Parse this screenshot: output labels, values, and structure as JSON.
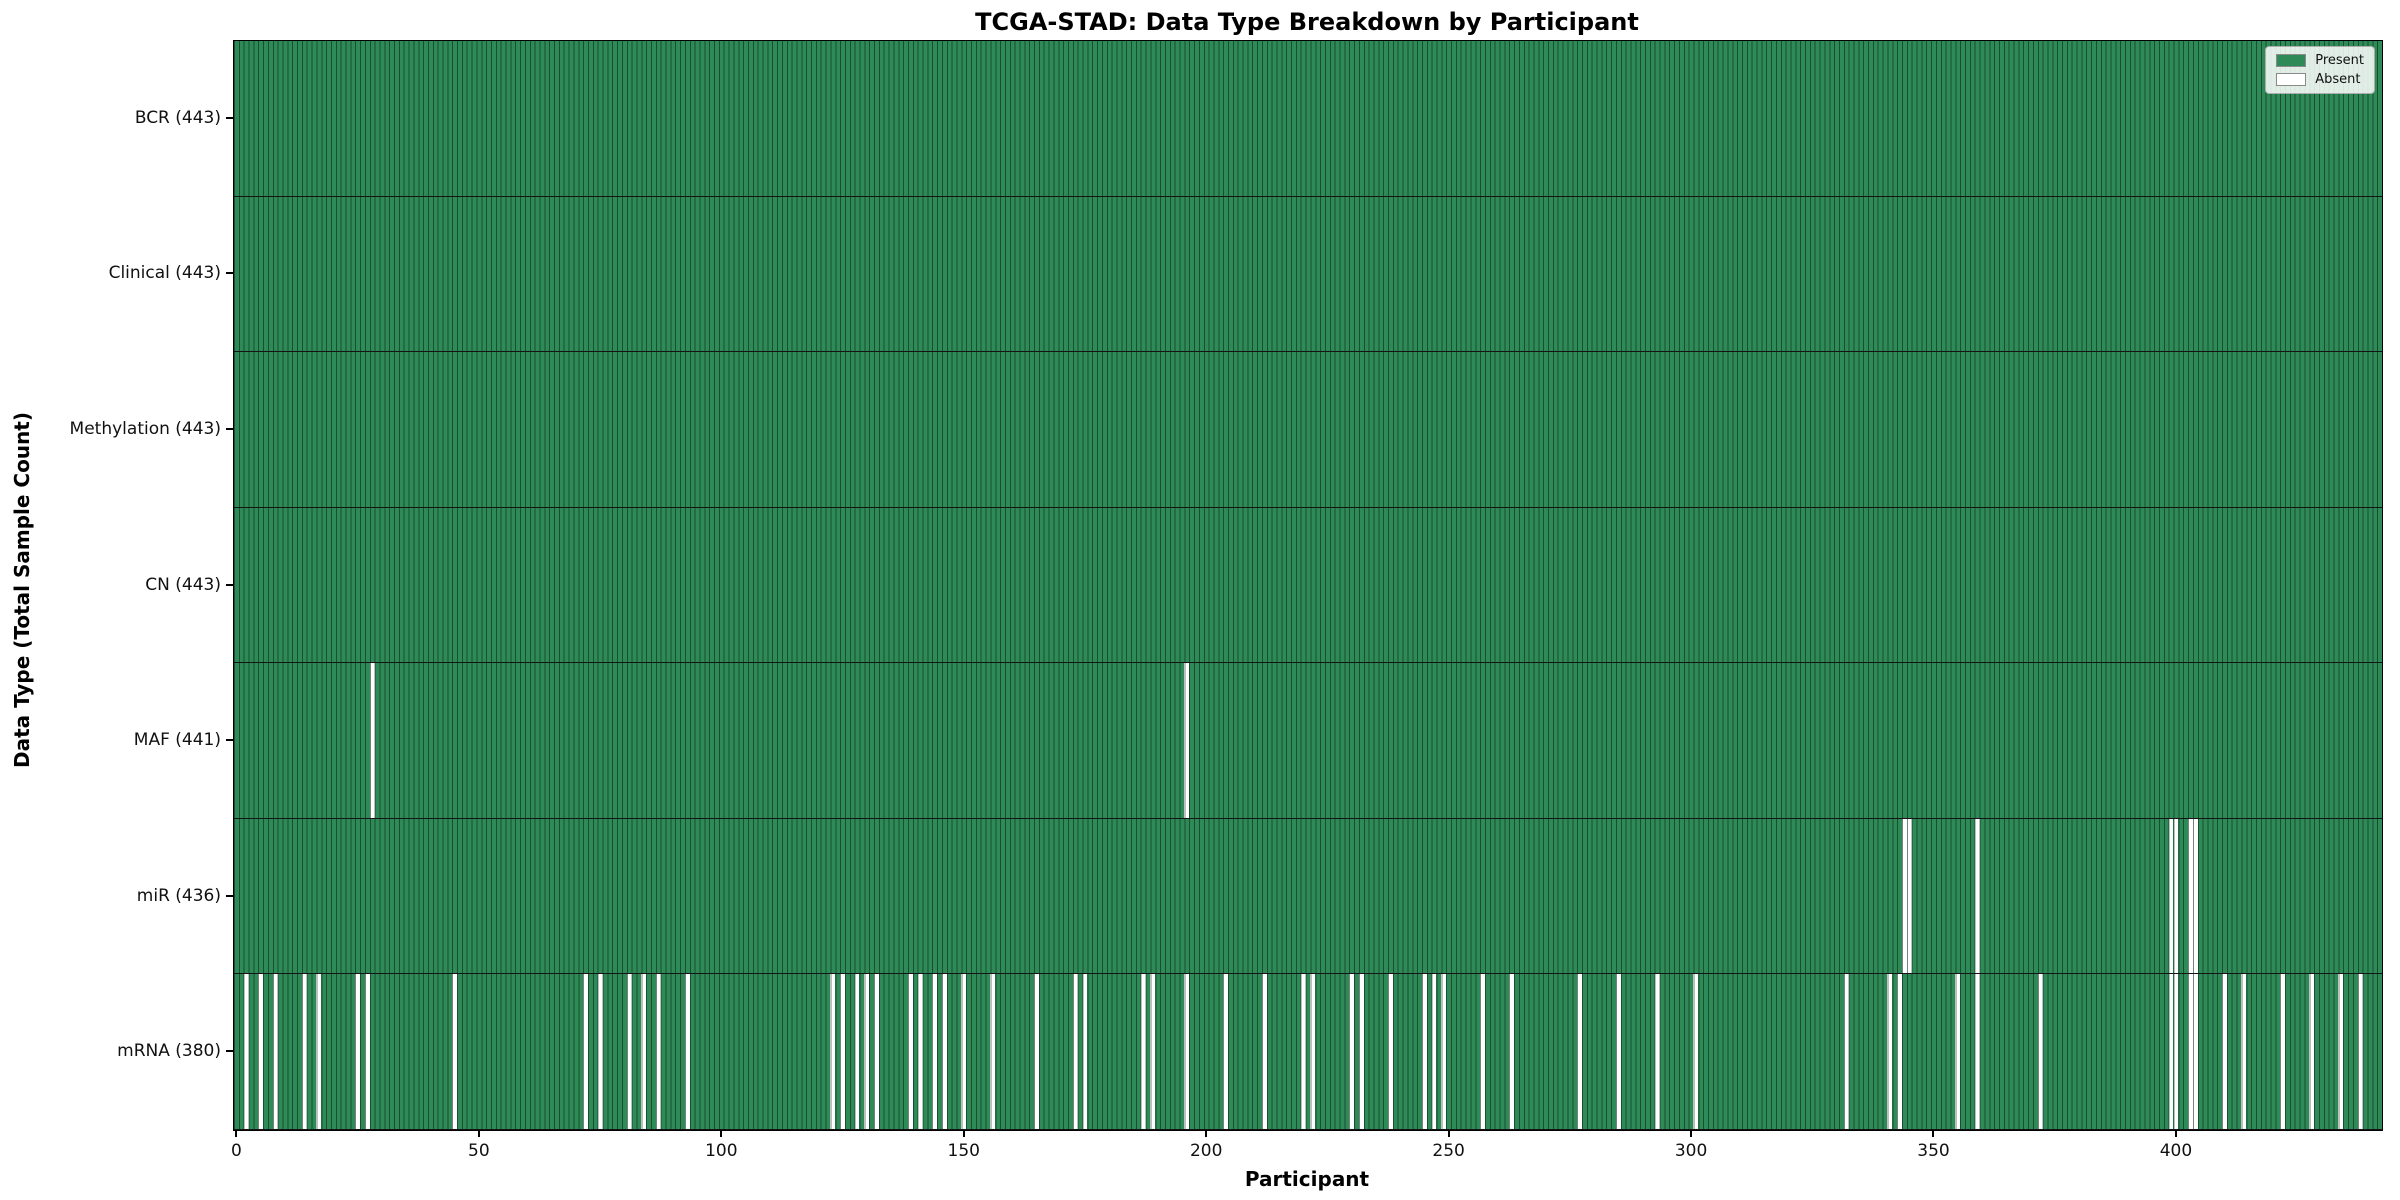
{
  "title": "TCGA-STAD: Data Type Breakdown by Participant",
  "chart_data": {
    "type": "heatmap",
    "title": "TCGA-STAD: Data Type Breakdown by Participant",
    "xlabel": "Participant",
    "ylabel": "Data Type (Total Sample Count)",
    "n_participants": 443,
    "x_ticks": [
      0,
      50,
      100,
      150,
      200,
      250,
      300,
      350,
      400
    ],
    "grid": false,
    "legend_position": "upper right",
    "legend": [
      {
        "label": "Present",
        "color": "#2e8b57"
      },
      {
        "label": "Absent",
        "color": "#ffffff"
      }
    ],
    "colors": {
      "present": "#2e8b57",
      "absent": "#ffffff",
      "edge": "#000000"
    },
    "rows": [
      {
        "name": "bcr",
        "label": "BCR (443)",
        "data_type": "BCR",
        "total_count": 443,
        "absent_participants": []
      },
      {
        "name": "clinical",
        "label": "Clinical (443)",
        "data_type": "Clinical",
        "total_count": 443,
        "absent_participants": []
      },
      {
        "name": "methylation",
        "label": "Methylation (443)",
        "data_type": "Methylation",
        "total_count": 443,
        "absent_participants": []
      },
      {
        "name": "cn",
        "label": "CN (443)",
        "data_type": "CN",
        "total_count": 443,
        "absent_participants": []
      },
      {
        "name": "maf",
        "label": "MAF (441)",
        "data_type": "MAF",
        "total_count": 441,
        "absent_participants": [
          28,
          196
        ]
      },
      {
        "name": "mir",
        "label": "miR (436)",
        "data_type": "miR",
        "total_count": 436,
        "absent_participants": [
          344,
          345,
          359,
          399,
          400,
          403,
          404
        ]
      },
      {
        "name": "mrna",
        "label": "mRNA (380)",
        "data_type": "mRNA",
        "total_count": 380,
        "absent_participants": [
          2,
          5,
          8,
          14,
          17,
          25,
          27,
          45,
          72,
          75,
          81,
          84,
          87,
          93,
          123,
          125,
          128,
          130,
          132,
          139,
          141,
          144,
          146,
          150,
          156,
          165,
          173,
          175,
          187,
          189,
          196,
          204,
          212,
          220,
          222,
          230,
          232,
          238,
          245,
          247,
          249,
          257,
          263,
          277,
          285,
          293,
          301,
          332,
          341,
          343,
          355,
          359,
          372,
          399,
          400,
          403,
          404,
          410,
          414,
          422,
          428,
          434,
          438
        ]
      }
    ]
  }
}
